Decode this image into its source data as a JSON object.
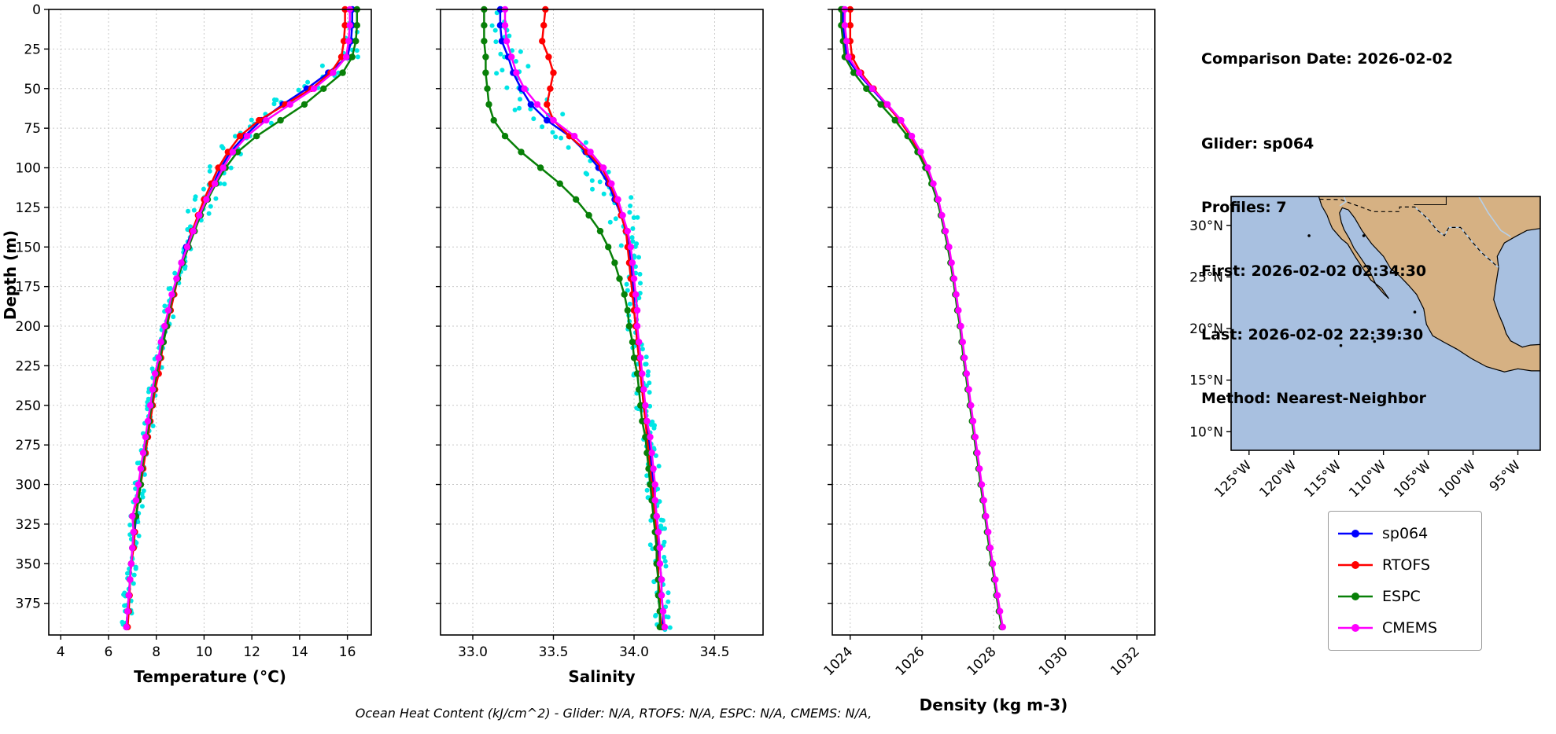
{
  "info": {
    "comparison_date": "Comparison Date: 2026-02-02",
    "glider": "Glider: sp064",
    "profiles": "Profiles: 7",
    "first": "First: 2026-02-02 02:34:30",
    "last": "Last: 2026-02-02 22:39:30",
    "method": "Method: Nearest-Neighbor"
  },
  "caption": "Ocean Heat Content (kJ/cm^2) - Glider: N/A,  RTOFS: N/A,  ESPC: N/A,  CMEMS: N/A,",
  "legend": {
    "entries": [
      {
        "label": "sp064",
        "color": "#0000ff"
      },
      {
        "label": "RTOFS",
        "color": "#ff0000"
      },
      {
        "label": "ESPC",
        "color": "#088008"
      },
      {
        "label": "CMEMS",
        "color": "#ff00ff"
      }
    ]
  },
  "chart_data": {
    "type": "line",
    "orientation": "vertical-profile",
    "ylabel": "Depth (m)",
    "ylim": [
      0,
      395
    ],
    "yticks": [
      0,
      25,
      50,
      75,
      100,
      125,
      150,
      175,
      200,
      225,
      250,
      275,
      300,
      325,
      350,
      375
    ],
    "depths": [
      0,
      10,
      20,
      30,
      40,
      50,
      60,
      70,
      80,
      90,
      100,
      110,
      120,
      130,
      140,
      150,
      160,
      170,
      180,
      190,
      200,
      210,
      220,
      230,
      240,
      250,
      260,
      270,
      280,
      290,
      300,
      310,
      320,
      330,
      340,
      350,
      360,
      370,
      380,
      390
    ],
    "raw_color": "#00e5e5",
    "panels": [
      {
        "id": "temperature",
        "xlabel": "Temperature (°C)",
        "xlim": [
          3.5,
          17.0
        ],
        "xticks": [
          4,
          6,
          8,
          10,
          12,
          14,
          16
        ],
        "xtick_labels": [
          "4",
          "6",
          "8",
          "10",
          "12",
          "14",
          "16"
        ],
        "tick_rotation": 0,
        "raw_scatter": true,
        "raw_jitter": 0.22,
        "series": [
          {
            "name": "sp064",
            "values": [
              16.2,
              16.2,
              16.15,
              16.0,
              15.2,
              14.3,
              13.3,
              12.4,
              11.7,
              11.1,
              10.7,
              10.4,
              10.1,
              9.8,
              9.5,
              9.25,
              9.05,
              8.85,
              8.7,
              8.55,
              8.4,
              8.3,
              8.15,
              8.05,
              7.9,
              7.8,
              7.7,
              7.6,
              7.5,
              7.4,
              7.3,
              7.25,
              7.15,
              7.1,
              7.0,
              6.95,
              6.9,
              6.85,
              6.8,
              6.75
            ]
          },
          {
            "name": "RTOFS",
            "values": [
              15.9,
              15.9,
              15.85,
              15.75,
              15.3,
              14.5,
              13.4,
              12.3,
              11.5,
              11.0,
              10.6,
              10.3,
              10.0,
              9.75,
              9.5,
              9.3,
              9.1,
              8.9,
              8.75,
              8.6,
              8.45,
              8.3,
              8.2,
              8.1,
              7.95,
              7.85,
              7.75,
              7.65,
              7.55,
              7.45,
              7.35,
              7.2,
              7.0,
              7.1,
              7.05,
              6.95,
              6.9,
              6.88,
              6.85,
              6.8
            ]
          },
          {
            "name": "ESPC",
            "values": [
              16.4,
              16.4,
              16.35,
              16.2,
              15.8,
              15.0,
              14.2,
              13.2,
              12.2,
              11.4,
              10.9,
              10.5,
              10.15,
              9.85,
              9.6,
              9.35,
              9.1,
              8.9,
              8.7,
              8.55,
              8.45,
              8.3,
              8.15,
              8.0,
              7.9,
              7.8,
              7.7,
              7.6,
              7.5,
              7.4,
              7.35,
              7.25,
              7.15,
              7.05,
              7.0,
              6.95,
              6.9,
              6.85,
              6.8,
              6.75
            ]
          },
          {
            "name": "CMEMS",
            "values": [
              16.1,
              16.1,
              16.05,
              15.95,
              15.4,
              14.6,
              13.6,
              12.6,
              11.8,
              11.2,
              10.8,
              10.45,
              10.1,
              9.8,
              9.55,
              9.3,
              9.05,
              8.85,
              8.65,
              8.5,
              8.35,
              8.2,
              8.1,
              7.95,
              7.85,
              7.75,
              7.65,
              7.55,
              7.45,
              7.35,
              7.25,
              7.15,
              7.0,
              7.05,
              7.0,
              6.95,
              6.9,
              6.85,
              6.8,
              6.75
            ]
          }
        ]
      },
      {
        "id": "salinity",
        "xlabel": "Salinity",
        "xlim": [
          32.8,
          34.8
        ],
        "xticks": [
          33.0,
          33.5,
          34.0,
          34.5
        ],
        "xtick_labels": [
          "33.0",
          "33.5",
          "34.0",
          "34.5"
        ],
        "tick_rotation": 0,
        "raw_scatter": true,
        "raw_jitter": 0.05,
        "series": [
          {
            "name": "sp064",
            "values": [
              33.17,
              33.17,
              33.18,
              33.22,
              33.25,
              33.3,
              33.36,
              33.46,
              33.6,
              33.7,
              33.78,
              33.84,
              33.88,
              33.92,
              33.95,
              33.97,
              33.98,
              33.99,
              34.0,
              34.0,
              34.01,
              34.02,
              34.03,
              34.04,
              34.05,
              34.06,
              34.08,
              34.09,
              34.1,
              34.11,
              34.12,
              34.13,
              34.14,
              34.15,
              34.15,
              34.16,
              34.17,
              34.17,
              34.18,
              34.18
            ]
          },
          {
            "name": "RTOFS",
            "values": [
              33.45,
              33.44,
              33.43,
              33.47,
              33.5,
              33.48,
              33.46,
              33.5,
              33.6,
              33.71,
              33.8,
              33.85,
              33.89,
              33.92,
              33.95,
              33.96,
              33.97,
              33.98,
              33.99,
              34.0,
              34.01,
              34.02,
              34.03,
              34.04,
              34.05,
              34.06,
              34.07,
              34.08,
              34.09,
              34.1,
              34.11,
              34.12,
              34.13,
              34.14,
              34.14,
              34.15,
              34.15,
              34.16,
              34.16,
              34.17
            ]
          },
          {
            "name": "ESPC",
            "values": [
              33.07,
              33.07,
              33.07,
              33.08,
              33.08,
              33.09,
              33.1,
              33.13,
              33.2,
              33.3,
              33.42,
              33.54,
              33.64,
              33.72,
              33.79,
              33.84,
              33.88,
              33.91,
              33.94,
              33.96,
              33.97,
              33.99,
              34.0,
              34.02,
              34.03,
              34.04,
              34.05,
              34.07,
              34.08,
              34.09,
              34.1,
              34.11,
              34.12,
              34.13,
              34.14,
              34.14,
              34.15,
              34.15,
              34.16,
              34.16
            ]
          },
          {
            "name": "CMEMS",
            "values": [
              33.2,
              33.2,
              33.21,
              33.24,
              33.27,
              33.32,
              33.4,
              33.5,
              33.63,
              33.73,
              33.81,
              33.86,
              33.9,
              33.93,
              33.96,
              33.98,
              33.99,
              34.0,
              34.01,
              34.02,
              34.02,
              34.03,
              34.04,
              34.05,
              34.06,
              34.07,
              34.08,
              34.1,
              34.11,
              34.12,
              34.13,
              34.13,
              34.14,
              34.15,
              34.16,
              34.16,
              34.17,
              34.17,
              34.18,
              34.19
            ]
          }
        ]
      },
      {
        "id": "density",
        "xlabel": "Density (kg m-3)",
        "xlim": [
          1023.5,
          1032.5
        ],
        "xticks": [
          1024,
          1026,
          1028,
          1030,
          1032
        ],
        "xtick_labels": [
          "1024",
          "1026",
          "1028",
          "1030",
          "1032"
        ],
        "tick_rotation": 45,
        "raw_scatter": false,
        "raw_jitter": 0,
        "series": [
          {
            "name": "sp064",
            "values": [
              1023.8,
              1023.8,
              1023.85,
              1023.9,
              1024.2,
              1024.6,
              1025.0,
              1025.4,
              1025.7,
              1025.95,
              1026.15,
              1026.3,
              1026.45,
              1026.55,
              1026.65,
              1026.75,
              1026.82,
              1026.89,
              1026.95,
              1027.0,
              1027.08,
              1027.13,
              1027.18,
              1027.24,
              1027.3,
              1027.36,
              1027.42,
              1027.48,
              1027.54,
              1027.6,
              1027.66,
              1027.72,
              1027.78,
              1027.84,
              1027.9,
              1027.97,
              1028.04,
              1028.1,
              1028.17,
              1028.25
            ]
          },
          {
            "name": "RTOFS",
            "values": [
              1024.0,
              1024.0,
              1024.0,
              1024.05,
              1024.3,
              1024.65,
              1025.02,
              1025.38,
              1025.68,
              1025.93,
              1026.13,
              1026.29,
              1026.43,
              1026.54,
              1026.64,
              1026.73,
              1026.81,
              1026.88,
              1026.94,
              1027.0,
              1027.07,
              1027.12,
              1027.17,
              1027.23,
              1027.29,
              1027.35,
              1027.41,
              1027.47,
              1027.53,
              1027.59,
              1027.65,
              1027.71,
              1027.77,
              1027.83,
              1027.89,
              1027.96,
              1028.03,
              1028.09,
              1028.16,
              1028.24
            ]
          },
          {
            "name": "ESPC",
            "values": [
              1023.75,
              1023.75,
              1023.8,
              1023.85,
              1024.1,
              1024.45,
              1024.85,
              1025.25,
              1025.6,
              1025.88,
              1026.1,
              1026.27,
              1026.42,
              1026.53,
              1026.63,
              1026.72,
              1026.8,
              1026.87,
              1026.93,
              1026.99,
              1027.06,
              1027.11,
              1027.16,
              1027.22,
              1027.28,
              1027.34,
              1027.4,
              1027.46,
              1027.52,
              1027.58,
              1027.64,
              1027.7,
              1027.76,
              1027.82,
              1027.88,
              1027.95,
              1028.02,
              1028.08,
              1028.15,
              1028.23
            ]
          },
          {
            "name": "CMEMS",
            "values": [
              1023.85,
              1023.85,
              1023.9,
              1023.95,
              1024.25,
              1024.62,
              1025.04,
              1025.42,
              1025.72,
              1025.97,
              1026.17,
              1026.32,
              1026.46,
              1026.56,
              1026.66,
              1026.76,
              1026.83,
              1026.9,
              1026.96,
              1027.02,
              1027.09,
              1027.14,
              1027.19,
              1027.25,
              1027.31,
              1027.37,
              1027.43,
              1027.49,
              1027.55,
              1027.61,
              1027.67,
              1027.73,
              1027.79,
              1027.85,
              1027.91,
              1027.98,
              1028.05,
              1028.11,
              1028.18,
              1028.26
            ]
          }
        ]
      }
    ]
  },
  "map": {
    "extent": {
      "lon_min": -127.0,
      "lon_max": -92.5,
      "lat_min": 8.2,
      "lat_max": 32.8
    },
    "ocean_color": "#a8c0e0",
    "land_color": "#d6b183",
    "river_color": "#b6d0ea",
    "lat_ticks": [
      10,
      15,
      20,
      25,
      30
    ],
    "lat_tick_labels": [
      "10°N",
      "15°N",
      "20°N",
      "25°N",
      "30°N"
    ],
    "lon_ticks": [
      -125,
      -120,
      -115,
      -110,
      -105,
      -100,
      -95
    ],
    "lon_tick_labels": [
      "125°W",
      "120°W",
      "115°W",
      "110°W",
      "105°W",
      "100°W",
      "95°W"
    ],
    "land": [
      [
        -117.3,
        33
      ],
      [
        -117.12,
        32.53
      ],
      [
        -116.9,
        31.9
      ],
      [
        -116.3,
        31.0
      ],
      [
        -116.0,
        30.3
      ],
      [
        -115.7,
        29.7
      ],
      [
        -114.7,
        28.7
      ],
      [
        -114.0,
        28.2
      ],
      [
        -113.1,
        26.9
      ],
      [
        -112.2,
        25.7
      ],
      [
        -111.4,
        24.7
      ],
      [
        -110.2,
        23.9
      ],
      [
        -109.4,
        22.9
      ],
      [
        -110.0,
        23.4
      ],
      [
        -110.8,
        24.2
      ],
      [
        -111.5,
        25.5
      ],
      [
        -112.5,
        26.8
      ],
      [
        -113.3,
        27.8
      ],
      [
        -113.8,
        28.7
      ],
      [
        -114.4,
        29.6
      ],
      [
        -114.7,
        30.3
      ],
      [
        -114.9,
        31.2
      ],
      [
        -114.6,
        31.7
      ],
      [
        -113.9,
        31.5
      ],
      [
        -113.2,
        30.7
      ],
      [
        -112.4,
        29.5
      ],
      [
        -111.3,
        28.2
      ],
      [
        -110.0,
        27.0
      ],
      [
        -109.2,
        25.8
      ],
      [
        -108.2,
        25.1
      ],
      [
        -107.2,
        24.2
      ],
      [
        -106.3,
        23.3
      ],
      [
        -105.5,
        21.9
      ],
      [
        -105.2,
        20.4
      ],
      [
        -104.5,
        19.3
      ],
      [
        -103.3,
        18.7
      ],
      [
        -101.8,
        18.0
      ],
      [
        -100.2,
        17.1
      ],
      [
        -98.5,
        16.3
      ],
      [
        -96.5,
        15.8
      ],
      [
        -95.0,
        16.1
      ],
      [
        -93.5,
        15.9
      ],
      [
        -92.5,
        15.9
      ],
      [
        -92.5,
        18.45
      ],
      [
        -93.6,
        18.4
      ],
      [
        -94.5,
        18.2
      ],
      [
        -95.8,
        18.8
      ],
      [
        -96.3,
        19.5
      ],
      [
        -96.6,
        20.3
      ],
      [
        -97.2,
        21.5
      ],
      [
        -97.7,
        22.8
      ],
      [
        -97.5,
        24.0
      ],
      [
        -97.15,
        25.9
      ],
      [
        -97.3,
        27.0
      ],
      [
        -96.5,
        28.3
      ],
      [
        -95.3,
        28.9
      ],
      [
        -94.0,
        29.5
      ],
      [
        -92.5,
        29.7
      ],
      [
        -92.5,
        33
      ]
    ],
    "border_dashed": [
      [
        -117.12,
        32.53
      ],
      [
        -114.8,
        32.5
      ],
      [
        -111.1,
        31.33
      ],
      [
        -108.2,
        31.33
      ],
      [
        -108.2,
        31.78
      ],
      [
        -106.5,
        31.78
      ],
      [
        -105.0,
        30.6
      ],
      [
        -104.0,
        29.5
      ],
      [
        -103.2,
        29.0
      ],
      [
        -102.7,
        29.8
      ],
      [
        -101.4,
        29.8
      ],
      [
        -100.0,
        28.3
      ],
      [
        -99.1,
        27.4
      ],
      [
        -97.15,
        25.9
      ]
    ],
    "states": [
      [
        [
          -103,
          33
        ],
        [
          -103,
          32
        ],
        [
          -106.6,
          32
        ]
      ]
    ],
    "rivers": [
      [
        [
          -99.5,
          33
        ],
        [
          -98.3,
          31.2
        ],
        [
          -96.9,
          29.5
        ],
        [
          -95.8,
          28.9
        ]
      ],
      [
        [
          -114.5,
          33
        ],
        [
          -114.2,
          32.3
        ],
        [
          -114.85,
          31.9
        ]
      ],
      [
        [
          -106.5,
          31.78
        ],
        [
          -105.0,
          30.6
        ],
        [
          -104.0,
          29.5
        ],
        [
          -103.2,
          29.0
        ],
        [
          -102.7,
          29.8
        ],
        [
          -101.4,
          29.8
        ],
        [
          -100.0,
          28.3
        ],
        [
          -99.1,
          27.4
        ],
        [
          -97.15,
          25.9
        ]
      ]
    ],
    "islands": [
      [
        -118.3,
        29.0
      ],
      [
        -114.75,
        18.35
      ],
      [
        -111.0,
        18.75
      ],
      [
        -106.5,
        21.6
      ],
      [
        -112.2,
        29.0
      ]
    ]
  }
}
